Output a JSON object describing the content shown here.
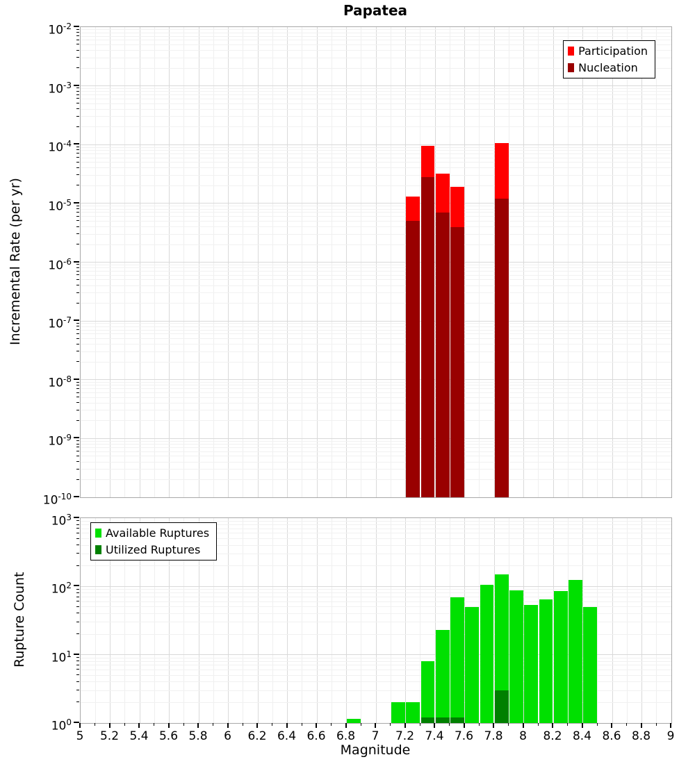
{
  "title": "Papatea",
  "colors": {
    "participation": "#ff0000",
    "nucleation": "#990000",
    "available_ruptures": "#00e000",
    "utilized_ruptures": "#008000"
  },
  "chart_data": [
    {
      "type": "bar",
      "title": "Papatea",
      "xlabel": "",
      "ylabel": "Incremental Rate (per yr)",
      "yscale": "log",
      "xlim": [
        5,
        9
      ],
      "ylim": [
        1e-10,
        0.01
      ],
      "yticks_exp": [
        -2,
        -3,
        -4,
        -5,
        -6,
        -7,
        -8,
        -9,
        -10
      ],
      "bar_width": 0.1,
      "grid": true,
      "legend_position": "top-right",
      "series": [
        {
          "name": "Participation",
          "color": "#ff0000",
          "x": [
            7.25,
            7.35,
            7.45,
            7.55,
            7.85
          ],
          "values": [
            1.3e-05,
            9.5e-05,
            3.2e-05,
            1.9e-05,
            0.000105
          ]
        },
        {
          "name": "Nucleation",
          "color": "#990000",
          "x": [
            7.25,
            7.35,
            7.45,
            7.55,
            7.85
          ],
          "values": [
            5e-06,
            2.8e-05,
            7e-06,
            4e-06,
            1.2e-05
          ]
        }
      ]
    },
    {
      "type": "bar",
      "title": "",
      "xlabel": "Magnitude",
      "ylabel": "Rupture Count",
      "yscale": "log",
      "xlim": [
        5,
        9
      ],
      "ylim": [
        1,
        1000
      ],
      "yticks_exp": [
        0,
        1,
        2,
        3
      ],
      "xtick_labels": [
        "5",
        "5.2",
        "5.4",
        "5.6",
        "5.8",
        "6",
        "6.2",
        "6.4",
        "6.6",
        "6.8",
        "7",
        "7.2",
        "7.4",
        "7.6",
        "7.8",
        "8",
        "8.2",
        "8.4",
        "8.6",
        "8.8",
        "9"
      ],
      "bar_width": 0.1,
      "grid": true,
      "legend_position": "top-left",
      "series": [
        {
          "name": "Available Ruptures",
          "color": "#00e000",
          "x": [
            6.85,
            7.15,
            7.25,
            7.35,
            7.45,
            7.55,
            7.65,
            7.75,
            7.85,
            7.95,
            8.05,
            8.15,
            8.25,
            8.35,
            8.45
          ],
          "values": [
            1.15,
            2,
            2,
            8,
            23,
            70,
            50,
            105,
            150,
            88,
            53,
            65,
            85,
            125,
            50
          ]
        },
        {
          "name": "Utilized Ruptures",
          "color": "#008000",
          "x": [
            7.35,
            7.45,
            7.55,
            7.85
          ],
          "values": [
            1.2,
            1.2,
            1.2,
            3
          ]
        }
      ]
    }
  ]
}
